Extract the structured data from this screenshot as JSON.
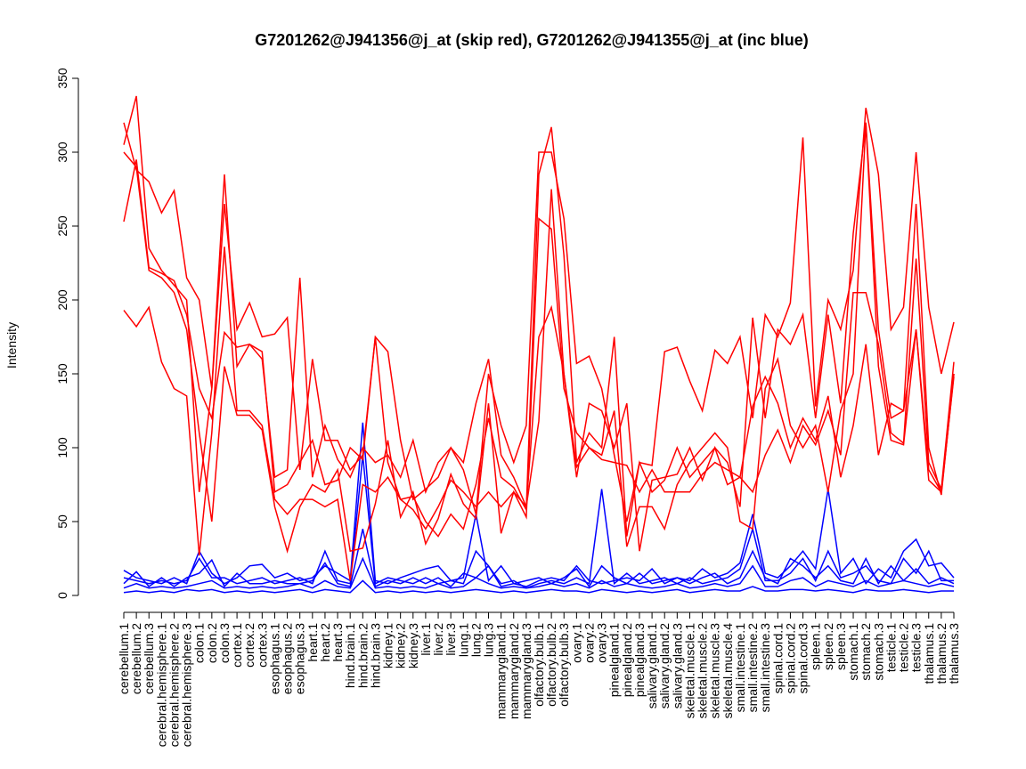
{
  "chart_data": {
    "type": "line",
    "title": "G7201262@J941356@j_at (skip red), G7201262@J941355@j_at (inc blue)",
    "xlabel": "",
    "ylabel": "Intensity",
    "ylim": [
      0,
      350
    ],
    "yticks": [
      0,
      50,
      100,
      150,
      200,
      250,
      300,
      350
    ],
    "grid": false,
    "colors": {
      "skip": "#ff0000",
      "inc": "#0000ff"
    },
    "categories": [
      "cerebellum.1",
      "cerebellum.2",
      "cerebellum.3",
      "cerebral.hemisphere.1",
      "cerebral.hemisphere.2",
      "cerebral.hemisphere.3",
      "colon.1",
      "colon.2",
      "colon.3",
      "cortex.1",
      "cortex.2",
      "cortex.3",
      "esophagus.1",
      "esophagus.2",
      "esophagus.3",
      "heart.1",
      "heart.2",
      "heart.3",
      "hind.brain.1",
      "hind.brain.2",
      "hind.brain.3",
      "kidney.1",
      "kidney.2",
      "kidney.3",
      "liver.1",
      "liver.2",
      "liver.3",
      "lung.1",
      "lung.2",
      "lung.3",
      "mammarygland.1",
      "mammarygland.2",
      "mammarygland.3",
      "olfactory.bulb.1",
      "olfactory.bulb.2",
      "olfactory.bulb.3",
      "ovary.1",
      "ovary.2",
      "ovary.3",
      "pinealgland.1",
      "pinealgland.2",
      "pinealgland.3",
      "salivary.gland.1",
      "salivary.gland.2",
      "salivary.gland.3",
      "skeletal.muscle.1",
      "skeletal.muscle.2",
      "skeletal.muscle.3",
      "skeletal.muscle.4",
      "small.intestine.1",
      "small.intestine.2",
      "small.intestine.3",
      "spinal.cord.1",
      "spinal.cord.2",
      "spinal.cord.3",
      "spleen.1",
      "spleen.2",
      "spleen.3",
      "stomach.1",
      "stomach.2",
      "stomach.3",
      "testicle.1",
      "testicle.2",
      "testicle.3",
      "thalamus.1",
      "thalamus.2",
      "thalamus.3"
    ],
    "series": [
      {
        "name": "skip-1",
        "group": "skip",
        "values": [
          320,
          288,
          280,
          259,
          274,
          215,
          200,
          140,
          265,
          180,
          198,
          175,
          177,
          188,
          85,
          160,
          105,
          105,
          85,
          95,
          175,
          165,
          105,
          65,
          72,
          80,
          100,
          85,
          55,
          150,
          115,
          90,
          115,
          300,
          300,
          255,
          157,
          162,
          140,
          95,
          50,
          90,
          88,
          165,
          168,
          145,
          125,
          166,
          157,
          175,
          120,
          190,
          175,
          198,
          310,
          128,
          200,
          180,
          220,
          330,
          285,
          180,
          195,
          300,
          195,
          150,
          185
        ]
      },
      {
        "name": "skip-2",
        "group": "skip",
        "values": [
          305,
          338,
          235,
          220,
          210,
          200,
          70,
          140,
          285,
          155,
          170,
          165,
          70,
          75,
          90,
          105,
          75,
          78,
          100,
          92,
          175,
          90,
          65,
          67,
          50,
          40,
          55,
          45,
          75,
          120,
          80,
          73,
          58,
          285,
          317,
          230,
          90,
          110,
          100,
          175,
          40,
          90,
          70,
          78,
          100,
          80,
          90,
          100,
          90,
          60,
          188,
          120,
          180,
          170,
          190,
          120,
          190,
          130,
          245,
          320,
          180,
          120,
          125,
          265,
          100,
          68,
          150
        ]
      },
      {
        "name": "skip-3",
        "group": "skip",
        "values": [
          253,
          295,
          222,
          218,
          213,
          190,
          140,
          120,
          178,
          168,
          170,
          160,
          80,
          85,
          215,
          80,
          115,
          92,
          80,
          100,
          90,
          95,
          80,
          105,
          70,
          90,
          100,
          90,
          130,
          160,
          95,
          80,
          60,
          175,
          195,
          150,
          80,
          130,
          125,
          100,
          130,
          30,
          78,
          80,
          82,
          100,
          78,
          100,
          75,
          80,
          128,
          148,
          130,
          100,
          120,
          105,
          135,
          80,
          115,
          170,
          95,
          130,
          125,
          180,
          78,
          70,
          148
        ]
      },
      {
        "name": "skip-4",
        "group": "skip",
        "values": [
          300,
          290,
          220,
          215,
          205,
          180,
          110,
          50,
          155,
          122,
          122,
          112,
          60,
          30,
          60,
          75,
          70,
          85,
          30,
          32,
          62,
          105,
          53,
          70,
          35,
          52,
          82,
          62,
          52,
          130,
          42,
          70,
          53,
          255,
          248,
          140,
          110,
          100,
          95,
          125,
          33,
          60,
          60,
          45,
          75,
          90,
          100,
          110,
          100,
          50,
          45,
          140,
          160,
          115,
          100,
          115,
          70,
          125,
          150,
          320,
          155,
          105,
          102,
          180,
          85,
          70,
          150
        ]
      },
      {
        "name": "skip-5",
        "group": "skip",
        "values": [
          193,
          182,
          195,
          158,
          140,
          135,
          27,
          110,
          236,
          125,
          125,
          115,
          65,
          55,
          65,
          65,
          60,
          65,
          10,
          75,
          70,
          80,
          65,
          58,
          45,
          60,
          78,
          70,
          60,
          70,
          60,
          70,
          60,
          118,
          275,
          150,
          87,
          100,
          92,
          90,
          88,
          70,
          85,
          70,
          70,
          70,
          82,
          90,
          85,
          80,
          70,
          95,
          112,
          90,
          115,
          102,
          125,
          95,
          205,
          205,
          170,
          110,
          103,
          228,
          90,
          72,
          158
        ]
      },
      {
        "name": "inc-1",
        "group": "inc",
        "values": [
          17,
          12,
          10,
          8,
          12,
          8,
          30,
          15,
          8,
          12,
          20,
          21,
          12,
          15,
          10,
          12,
          20,
          15,
          10,
          117,
          10,
          8,
          12,
          15,
          18,
          20,
          10,
          12,
          55,
          10,
          20,
          8,
          6,
          10,
          12,
          10,
          20,
          10,
          8,
          10,
          12,
          10,
          18,
          8,
          12,
          10,
          18,
          12,
          15,
          22,
          55,
          15,
          12,
          20,
          30,
          18,
          72,
          15,
          25,
          8,
          18,
          12,
          30,
          38,
          20,
          22,
          12
        ]
      },
      {
        "name": "inc-2",
        "group": "inc",
        "values": [
          12,
          10,
          8,
          10,
          8,
          10,
          25,
          12,
          12,
          8,
          10,
          12,
          8,
          10,
          12,
          8,
          30,
          10,
          8,
          95,
          8,
          12,
          10,
          8,
          12,
          8,
          10,
          8,
          30,
          20,
          8,
          10,
          5,
          8,
          10,
          8,
          12,
          8,
          72,
          8,
          15,
          8,
          10,
          12,
          8,
          12,
          8,
          10,
          12,
          18,
          45,
          10,
          10,
          15,
          25,
          10,
          30,
          12,
          15,
          20,
          10,
          8,
          25,
          15,
          30,
          10,
          10
        ]
      },
      {
        "name": "inc-3",
        "group": "inc",
        "values": [
          8,
          16,
          6,
          12,
          6,
          12,
          15,
          24,
          6,
          15,
          8,
          8,
          10,
          8,
          8,
          10,
          22,
          8,
          6,
          45,
          6,
          10,
          8,
          12,
          8,
          12,
          6,
          15,
          12,
          20,
          6,
          8,
          10,
          12,
          8,
          12,
          18,
          6,
          20,
          12,
          8,
          15,
          8,
          10,
          12,
          8,
          12,
          15,
          8,
          12,
          30,
          12,
          8,
          25,
          20,
          12,
          20,
          10,
          8,
          25,
          8,
          20,
          10,
          18,
          8,
          12,
          8
        ]
      },
      {
        "name": "inc-4",
        "group": "inc",
        "values": [
          5,
          8,
          5,
          6,
          5,
          6,
          8,
          10,
          5,
          6,
          5,
          6,
          5,
          6,
          8,
          5,
          10,
          6,
          5,
          25,
          5,
          6,
          5,
          6,
          5,
          8,
          5,
          6,
          12,
          8,
          5,
          6,
          5,
          6,
          8,
          6,
          8,
          5,
          10,
          6,
          8,
          6,
          5,
          6,
          8,
          5,
          6,
          8,
          6,
          8,
          20,
          6,
          6,
          10,
          12,
          6,
          10,
          8,
          6,
          10,
          6,
          8,
          10,
          8,
          6,
          8,
          6
        ]
      },
      {
        "name": "inc-5",
        "group": "inc",
        "values": [
          2,
          3,
          2,
          3,
          2,
          4,
          3,
          4,
          2,
          3,
          2,
          3,
          2,
          3,
          4,
          2,
          4,
          3,
          2,
          10,
          2,
          3,
          2,
          3,
          2,
          3,
          2,
          3,
          4,
          3,
          2,
          3,
          2,
          3,
          4,
          3,
          3,
          2,
          4,
          3,
          2,
          3,
          2,
          3,
          4,
          2,
          3,
          4,
          3,
          3,
          6,
          3,
          3,
          4,
          4,
          3,
          4,
          3,
          2,
          4,
          3,
          3,
          4,
          3,
          2,
          3,
          3
        ]
      }
    ]
  }
}
